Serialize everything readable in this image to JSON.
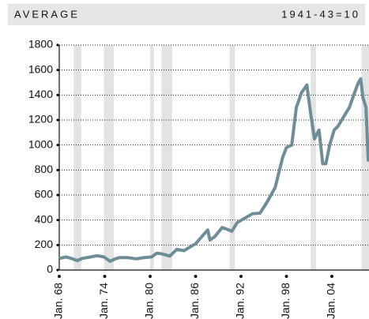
{
  "chart_data": {
    "type": "line",
    "header_left": "AVERAGE",
    "header_right": "1941-43=10",
    "x": [
      1968,
      1968.9,
      1969.5,
      1970.4,
      1971,
      1972,
      1973,
      1973.9,
      1974.7,
      1975.5,
      1976,
      1977,
      1978.2,
      1979,
      1980.2,
      1980.9,
      1981.5,
      1982.6,
      1983.5,
      1984.5,
      1985,
      1986,
      1987,
      1987.6,
      1987.9,
      1988.5,
      1989.5,
      1990,
      1990.8,
      1991.5,
      1992.5,
      1993.5,
      1994.5,
      1995.5,
      1996.5,
      1997.5,
      1998,
      1998.7,
      1999.3,
      2000,
      2000.7,
      2001.2,
      2001.7,
      2002.3,
      2002.8,
      2003.2,
      2003.7,
      2004.3,
      2004.8,
      2005.5,
      2006.3,
      2007,
      2007.5,
      2007.8,
      2008.1,
      2008.5,
      2008.8,
      2008.9
    ],
    "values": [
      93,
      105,
      95,
      76,
      93,
      103,
      115,
      105,
      70,
      92,
      100,
      100,
      90,
      98,
      105,
      135,
      130,
      112,
      165,
      155,
      175,
      210,
      280,
      320,
      240,
      265,
      340,
      330,
      310,
      380,
      415,
      450,
      455,
      550,
      660,
      900,
      980,
      1000,
      1300,
      1420,
      1480,
      1250,
      1050,
      1120,
      850,
      850,
      1000,
      1120,
      1150,
      1220,
      1300,
      1420,
      1500,
      1530,
      1380,
      1300,
      880,
      870
    ],
    "color": "#6f8d96",
    "shaded_periods": [
      [
        1969.9,
        1970.9
      ],
      [
        1973.9,
        1975.2
      ],
      [
        1980.0,
        1980.5
      ],
      [
        1981.5,
        1982.9
      ],
      [
        1990.5,
        1991.2
      ],
      [
        2001.2,
        2001.9
      ],
      [
        2007.9,
        2008.9
      ]
    ],
    "shade_color": "#e3e3e3",
    "xlim": [
      1968,
      2008.9
    ],
    "ylim": [
      0,
      1800
    ],
    "xticks": [
      {
        "value": 1968,
        "label": "Jan. 68"
      },
      {
        "value": 1974,
        "label": "Jan. 74"
      },
      {
        "value": 1980,
        "label": "Jan. 80"
      },
      {
        "value": 1986,
        "label": "Jan. 86"
      },
      {
        "value": 1992,
        "label": "Jan. 92"
      },
      {
        "value": 1998,
        "label": "Jan. 98"
      },
      {
        "value": 2004,
        "label": "Jan. 04"
      }
    ],
    "yticks": [
      0,
      200,
      400,
      600,
      800,
      1000,
      1200,
      1400,
      1600,
      1800
    ],
    "grid": true
  }
}
